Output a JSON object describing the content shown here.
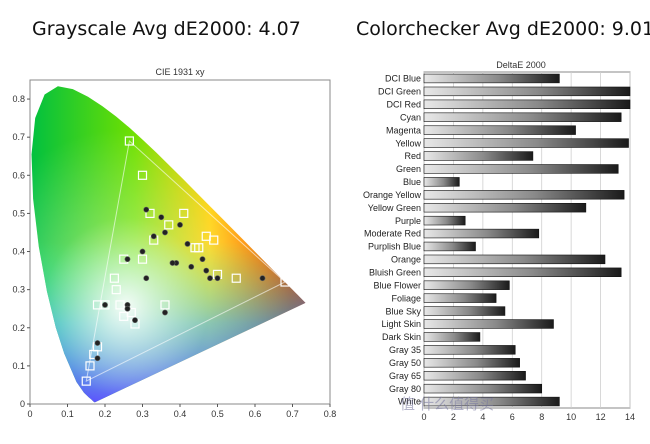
{
  "headlines": {
    "grayscale": "Grayscale Avg dE2000: 4.07",
    "colorchecker": "Colorchecker Avg dE2000: 9.01"
  },
  "watermark": "值 什么值得买",
  "chart_data": [
    {
      "type": "scatter",
      "title": "CIE 1931 xy",
      "xlim": [
        0,
        0.8
      ],
      "ylim": [
        0,
        0.85
      ],
      "x_ticks": [
        "0",
        "0.1",
        "0.2",
        "0.3",
        "0.4",
        "0.5",
        "0.6",
        "0.7",
        "0.8"
      ],
      "y_ticks": [
        "0",
        "0.1",
        "0.2",
        "0.3",
        "0.4",
        "0.5",
        "0.6",
        "0.7",
        "0.8"
      ],
      "grid": false,
      "series": [
        {
          "marker": "square",
          "points": [
            [
              0.265,
              0.69
            ],
            [
              0.68,
              0.32
            ],
            [
              0.15,
              0.06
            ],
            [
              0.225,
              0.33
            ],
            [
              0.32,
              0.5
            ],
            [
              0.41,
              0.5
            ],
            [
              0.45,
              0.41
            ],
            [
              0.47,
              0.44
            ],
            [
              0.49,
              0.43
            ],
            [
              0.37,
              0.47
            ],
            [
              0.3,
              0.6
            ],
            [
              0.55,
              0.33
            ],
            [
              0.5,
              0.34
            ],
            [
              0.36,
              0.26
            ],
            [
              0.23,
              0.3
            ],
            [
              0.25,
              0.23
            ],
            [
              0.27,
              0.24
            ],
            [
              0.18,
              0.15
            ],
            [
              0.17,
              0.13
            ],
            [
              0.16,
              0.1
            ],
            [
              0.28,
              0.21
            ],
            [
              0.3,
              0.38
            ],
            [
              0.33,
              0.43
            ],
            [
              0.44,
              0.41
            ],
            [
              0.18,
              0.26
            ],
            [
              0.25,
              0.38
            ],
            [
              0.2,
              0.26
            ],
            [
              0.24,
              0.26
            ]
          ]
        },
        {
          "marker": "circle",
          "points": [
            [
              0.31,
              0.51
            ],
            [
              0.35,
              0.49
            ],
            [
              0.36,
              0.45
            ],
            [
              0.4,
              0.47
            ],
            [
              0.42,
              0.42
            ],
            [
              0.33,
              0.44
            ],
            [
              0.39,
              0.37
            ],
            [
              0.38,
              0.37
            ],
            [
              0.43,
              0.36
            ],
            [
              0.46,
              0.38
            ],
            [
              0.48,
              0.33
            ],
            [
              0.62,
              0.33
            ],
            [
              0.26,
              0.38
            ],
            [
              0.31,
              0.33
            ],
            [
              0.36,
              0.24
            ],
            [
              0.26,
              0.26
            ],
            [
              0.26,
              0.25
            ],
            [
              0.28,
              0.22
            ],
            [
              0.2,
              0.26
            ],
            [
              0.18,
              0.16
            ],
            [
              0.18,
              0.12
            ],
            [
              0.47,
              0.35
            ],
            [
              0.3,
              0.4
            ],
            [
              0.5,
              0.33
            ]
          ]
        }
      ]
    },
    {
      "type": "bar",
      "title": "DeltaE 2000",
      "xlim": [
        0,
        14
      ],
      "x_ticks": [
        "0",
        "2",
        "4",
        "6",
        "8",
        "10",
        "12",
        "14"
      ],
      "categories": [
        "DCI Blue",
        "DCI Green",
        "DCI Red",
        "Cyan",
        "Magenta",
        "Yellow",
        "Red",
        "Green",
        "Blue",
        "Orange Yellow",
        "Yellow Green",
        "Purple",
        "Moderate Red",
        "Purplish Blue",
        "Orange",
        "Bluish Green",
        "Blue Flower",
        "Foliage",
        "Blue Sky",
        "Light Skin",
        "Dark Skin",
        "Gray 35",
        "Gray 50",
        "Gray 65",
        "Gray 80",
        "White"
      ],
      "values": [
        9.2,
        14.3,
        14.3,
        13.4,
        10.3,
        13.9,
        7.4,
        13.2,
        2.4,
        13.6,
        11.0,
        2.8,
        7.8,
        3.5,
        12.3,
        13.4,
        5.8,
        4.9,
        5.5,
        8.8,
        3.8,
        6.2,
        6.5,
        6.9,
        8.0,
        9.2
      ]
    }
  ]
}
